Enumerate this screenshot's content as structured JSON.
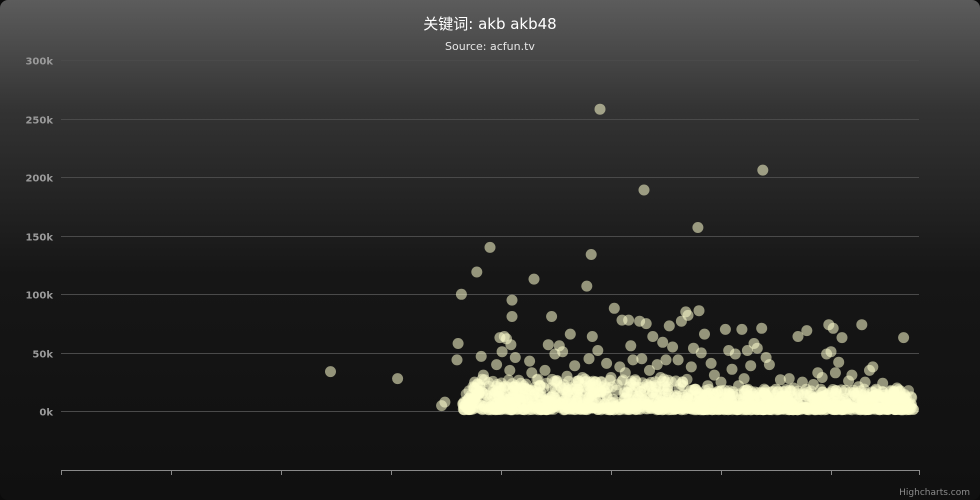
{
  "chart_data": {
    "type": "scatter",
    "title": "关键词: akb akb48",
    "subtitle": "Source: acfun.tv",
    "credits": "Highcharts.com",
    "ylim": [
      -50000,
      300000
    ],
    "xlim": [
      0,
      78
    ],
    "y_ticks": [
      {
        "value": 0,
        "label": "0k"
      },
      {
        "value": 50000,
        "label": "50k"
      },
      {
        "value": 100000,
        "label": "100k"
      },
      {
        "value": 150000,
        "label": "150k"
      },
      {
        "value": 200000,
        "label": "200k"
      },
      {
        "value": 250000,
        "label": "250k"
      },
      {
        "value": 300000,
        "label": "300k"
      }
    ],
    "x_ticks": [
      0,
      10,
      20,
      30,
      40,
      50,
      60,
      70,
      78
    ],
    "grid": true,
    "legend": "none",
    "marker_color": "#ffffd0",
    "series": [
      {
        "points": [
          [
            24.5,
            34000
          ],
          [
            30.6,
            28000
          ],
          [
            34.6,
            5000
          ],
          [
            34.9,
            8000
          ],
          [
            36.0,
            44000
          ],
          [
            36.1,
            58000
          ],
          [
            36.4,
            100000
          ],
          [
            36.6,
            4000
          ],
          [
            37.3,
            14000
          ],
          [
            37.6,
            25000
          ],
          [
            37.8,
            119000
          ],
          [
            38.2,
            47000
          ],
          [
            38.4,
            31000
          ],
          [
            39.0,
            140000
          ],
          [
            39.6,
            40000
          ],
          [
            39.9,
            63000
          ],
          [
            40.1,
            51000
          ],
          [
            40.3,
            64000
          ],
          [
            40.5,
            62000
          ],
          [
            40.8,
            35000
          ],
          [
            40.9,
            57000
          ],
          [
            41.0,
            95000
          ],
          [
            41.0,
            81000
          ],
          [
            41.3,
            46000
          ],
          [
            41.8,
            24000
          ],
          [
            42.2,
            20000
          ],
          [
            42.6,
            43000
          ],
          [
            42.8,
            33000
          ],
          [
            43.0,
            113000
          ],
          [
            43.5,
            22000
          ],
          [
            44.0,
            35000
          ],
          [
            44.3,
            57000
          ],
          [
            44.6,
            81000
          ],
          [
            44.9,
            49000
          ],
          [
            45.3,
            56000
          ],
          [
            45.6,
            51000
          ],
          [
            46.0,
            30000
          ],
          [
            46.3,
            66000
          ],
          [
            46.7,
            39000
          ],
          [
            47.0,
            19000
          ],
          [
            47.4,
            29000
          ],
          [
            47.8,
            107000
          ],
          [
            48.0,
            45000
          ],
          [
            48.2,
            134000
          ],
          [
            48.3,
            64000
          ],
          [
            48.6,
            25000
          ],
          [
            48.8,
            52000
          ],
          [
            49.0,
            258000
          ],
          [
            49.4,
            22000
          ],
          [
            49.6,
            41000
          ],
          [
            50.0,
            29000
          ],
          [
            50.3,
            88000
          ],
          [
            50.5,
            18000
          ],
          [
            50.8,
            38000
          ],
          [
            51.0,
            78000
          ],
          [
            51.3,
            33000
          ],
          [
            51.6,
            78000
          ],
          [
            51.8,
            56000
          ],
          [
            52.0,
            44000
          ],
          [
            52.2,
            27000
          ],
          [
            52.6,
            77000
          ],
          [
            52.8,
            45000
          ],
          [
            53.0,
            189000
          ],
          [
            53.2,
            75000
          ],
          [
            53.5,
            35000
          ],
          [
            53.8,
            64000
          ],
          [
            54.2,
            40000
          ],
          [
            54.5,
            29000
          ],
          [
            54.7,
            59000
          ],
          [
            55.0,
            44000
          ],
          [
            55.3,
            73000
          ],
          [
            55.6,
            55000
          ],
          [
            55.9,
            26000
          ],
          [
            56.1,
            44000
          ],
          [
            56.4,
            77000
          ],
          [
            56.8,
            85000
          ],
          [
            57.0,
            82000
          ],
          [
            57.3,
            38000
          ],
          [
            57.5,
            54000
          ],
          [
            57.7,
            19000
          ],
          [
            57.9,
            157000
          ],
          [
            58.0,
            86000
          ],
          [
            58.2,
            50000
          ],
          [
            58.5,
            66000
          ],
          [
            58.8,
            22000
          ],
          [
            59.1,
            41000
          ],
          [
            59.4,
            31000
          ],
          [
            59.7,
            17000
          ],
          [
            60.0,
            25000
          ],
          [
            60.4,
            70000
          ],
          [
            60.7,
            52000
          ],
          [
            61.0,
            36000
          ],
          [
            61.3,
            49000
          ],
          [
            61.6,
            22000
          ],
          [
            61.9,
            70000
          ],
          [
            62.1,
            28000
          ],
          [
            62.4,
            52000
          ],
          [
            62.7,
            39000
          ],
          [
            63.0,
            58000
          ],
          [
            63.3,
            54000
          ],
          [
            63.7,
            71000
          ],
          [
            63.8,
            206000
          ],
          [
            64.1,
            46000
          ],
          [
            64.4,
            40000
          ],
          [
            64.7,
            17000
          ],
          [
            65.0,
            19000
          ],
          [
            65.4,
            27000
          ],
          [
            65.8,
            13000
          ],
          [
            66.2,
            28000
          ],
          [
            66.6,
            20000
          ],
          [
            67.0,
            64000
          ],
          [
            67.4,
            25000
          ],
          [
            67.8,
            69000
          ],
          [
            68.1,
            15000
          ],
          [
            68.4,
            23000
          ],
          [
            68.8,
            33000
          ],
          [
            69.2,
            29000
          ],
          [
            69.6,
            49000
          ],
          [
            69.8,
            74000
          ],
          [
            70.0,
            51000
          ],
          [
            70.2,
            71000
          ],
          [
            70.4,
            33000
          ],
          [
            70.7,
            42000
          ],
          [
            71.0,
            63000
          ],
          [
            71.3,
            18000
          ],
          [
            71.6,
            26000
          ],
          [
            71.9,
            31000
          ],
          [
            72.2,
            14000
          ],
          [
            72.5,
            21000
          ],
          [
            72.8,
            74000
          ],
          [
            73.1,
            25000
          ],
          [
            73.5,
            35000
          ],
          [
            73.8,
            38000
          ],
          [
            74.1,
            19000
          ],
          [
            74.4,
            13000
          ],
          [
            74.7,
            24000
          ],
          [
            75.1,
            9000
          ],
          [
            75.4,
            17000
          ],
          [
            75.7,
            5000
          ],
          [
            76.0,
            20000
          ],
          [
            76.3,
            12000
          ],
          [
            76.6,
            63000
          ],
          [
            76.8,
            9000
          ],
          [
            77.1,
            6000
          ]
        ]
      }
    ]
  }
}
